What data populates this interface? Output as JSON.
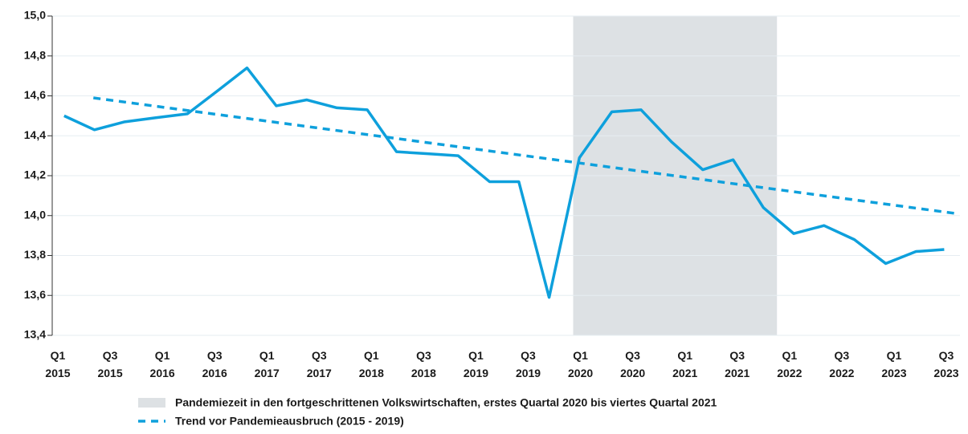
{
  "chart_data": {
    "type": "line",
    "x": [
      2015.06,
      2015.35,
      2015.64,
      2015.93,
      2016.24,
      2016.54,
      2016.81,
      2017.09,
      2017.38,
      2017.67,
      2017.96,
      2018.24,
      2018.54,
      2018.83,
      2019.13,
      2019.41,
      2019.7,
      2019.99,
      2020.3,
      2020.58,
      2020.87,
      2021.17,
      2021.46,
      2021.75,
      2022.04,
      2022.33,
      2022.62,
      2022.92,
      2023.21,
      2023.48
    ],
    "series": [
      {
        "color": "#0ea0dc",
        "values": [
          14.5,
          14.43,
          14.47,
          14.49,
          14.51,
          14.63,
          14.74,
          14.55,
          14.58,
          14.54,
          14.53,
          14.32,
          14.31,
          14.3,
          14.17,
          14.17,
          13.59,
          14.29,
          14.52,
          14.53,
          14.37,
          14.23,
          14.28,
          14.04,
          13.91,
          13.95,
          13.88,
          13.76,
          13.82,
          13.83
        ]
      }
    ],
    "trend": {
      "name": "Trend vor Pandemieausbruch (2015 - 2019)",
      "color": "#0ea0dc",
      "x": [
        2015.34,
        2023.6
      ],
      "values": [
        14.59,
        14.01
      ]
    },
    "band": {
      "name": "Pandemiezeit in den fortgeschrittenen Volkswirtschaften, erstes Quartal 2020 bis viertes Quartal 2021",
      "color": "#dde1e4",
      "x": [
        2019.93,
        2021.88
      ]
    },
    "xlim": [
      2015,
      2023.5
    ],
    "xticks": [
      {
        "value": 2015,
        "label": "Q1 2015"
      },
      {
        "value": 2015.5,
        "label": "Q3 2015"
      },
      {
        "value": 2016,
        "label": "Q1 2016"
      },
      {
        "value": 2016.5,
        "label": "Q3 2016"
      },
      {
        "value": 2017,
        "label": "Q1 2017"
      },
      {
        "value": 2017.5,
        "label": "Q3 2017"
      },
      {
        "value": 2018,
        "label": "Q1 2018"
      },
      {
        "value": 2018.5,
        "label": "Q3 2018"
      },
      {
        "value": 2019,
        "label": "Q1 2019"
      },
      {
        "value": 2019.5,
        "label": "Q3 2019"
      },
      {
        "value": 2020,
        "label": "Q1 2020"
      },
      {
        "value": 2020.5,
        "label": "Q3 2020"
      },
      {
        "value": 2021,
        "label": "Q1 2021"
      },
      {
        "value": 2021.5,
        "label": "Q3 2021"
      },
      {
        "value": 2022,
        "label": "Q1 2022"
      },
      {
        "value": 2022.5,
        "label": "Q3 2022"
      },
      {
        "value": 2023,
        "label": "Q1 2023"
      },
      {
        "value": 2023.5,
        "label": "Q3 2023"
      }
    ],
    "ylim": [
      13.4,
      15.0
    ],
    "yticks": [
      {
        "value": 13.4,
        "label": "13,4"
      },
      {
        "value": 13.6,
        "label": "13,6"
      },
      {
        "value": 13.8,
        "label": "13,8"
      },
      {
        "value": 14.0,
        "label": "14,0"
      },
      {
        "value": 14.2,
        "label": "14,2"
      },
      {
        "value": 14.4,
        "label": "14,4"
      },
      {
        "value": 14.6,
        "label": "14,6"
      },
      {
        "value": 14.8,
        "label": "14,8"
      },
      {
        "value": 15.0,
        "label": "15,0"
      }
    ],
    "grid": true
  }
}
